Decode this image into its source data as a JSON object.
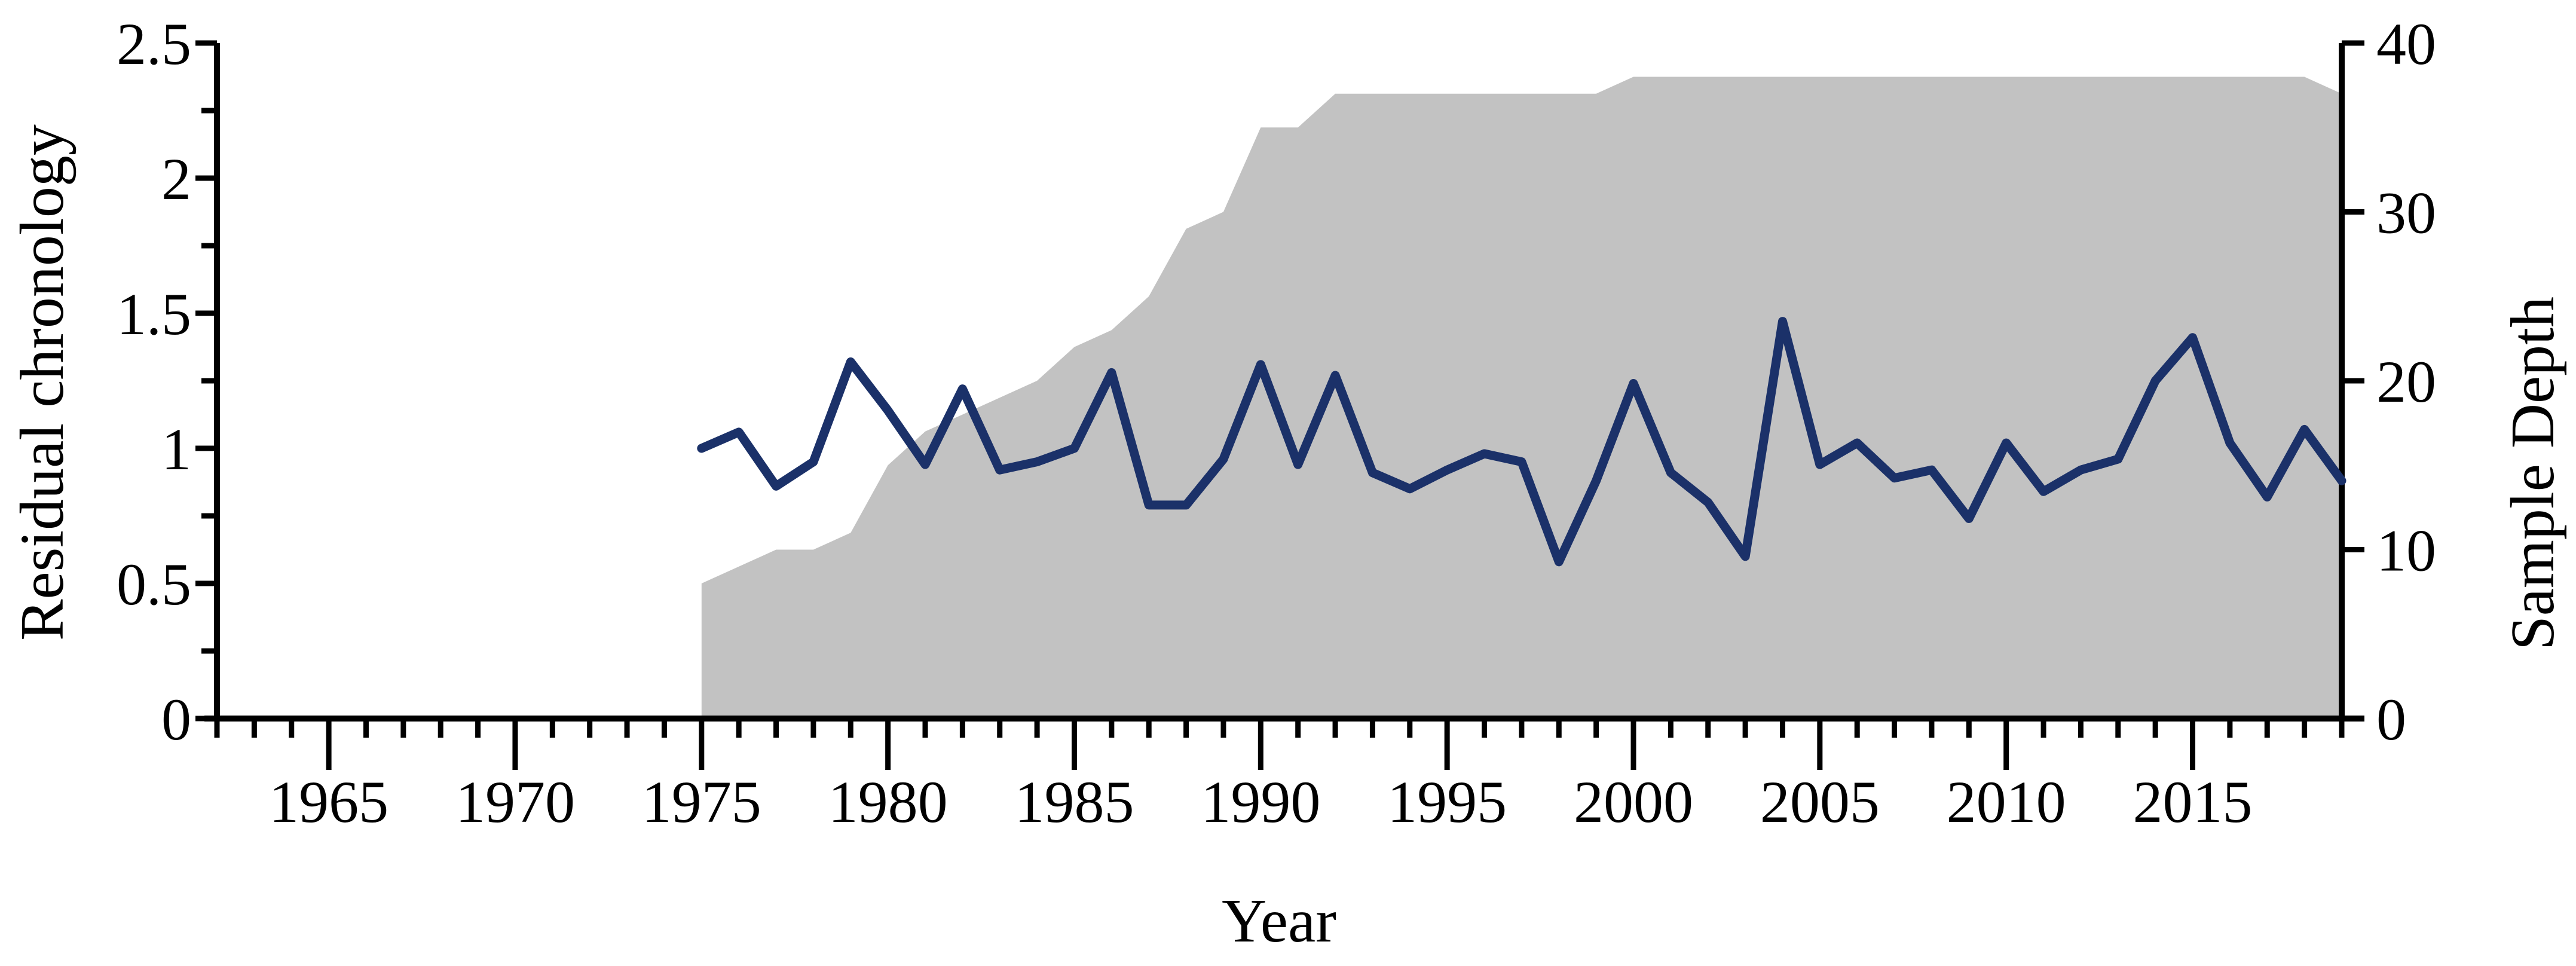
{
  "chart_data": {
    "type": "line",
    "title": "",
    "x": [
      1975,
      1976,
      1977,
      1978,
      1979,
      1980,
      1981,
      1982,
      1983,
      1984,
      1985,
      1986,
      1987,
      1988,
      1989,
      1990,
      1991,
      1992,
      1993,
      1994,
      1995,
      1996,
      1997,
      1998,
      1999,
      2000,
      2001,
      2002,
      2003,
      2004,
      2005,
      2006,
      2007,
      2008,
      2009,
      2010,
      2011,
      2012,
      2013,
      2014,
      2015,
      2016,
      2017,
      2018,
      2019
    ],
    "series": [
      {
        "name": "Residual chronology",
        "type": "line",
        "axis": "left",
        "color": "#1b3169",
        "values": [
          1.0,
          1.06,
          0.86,
          0.95,
          1.32,
          1.14,
          0.94,
          1.22,
          0.92,
          0.95,
          1.0,
          1.28,
          0.79,
          0.79,
          0.96,
          1.31,
          0.94,
          1.27,
          0.91,
          0.85,
          0.92,
          0.98,
          0.95,
          0.58,
          0.88,
          1.24,
          0.91,
          0.8,
          0.6,
          1.47,
          0.94,
          1.02,
          0.89,
          0.92,
          0.74,
          1.02,
          0.84,
          0.92,
          0.96,
          1.25,
          1.41,
          1.02,
          0.82,
          1.07,
          0.88
        ]
      },
      {
        "name": "Sample Depth",
        "type": "area",
        "axis": "right",
        "color": "#c2c2c2",
        "values": [
          8,
          9,
          10,
          10,
          11,
          15,
          17,
          18,
          19,
          20,
          22,
          23,
          25,
          29,
          30,
          35,
          35,
          37,
          37,
          37,
          37,
          37,
          37,
          37,
          37,
          38,
          38,
          38,
          38,
          38,
          38,
          38,
          38,
          38,
          38,
          38,
          38,
          38,
          38,
          38,
          38,
          38,
          38,
          38,
          37
        ]
      }
    ],
    "left_axis": {
      "label": "Residual chronology",
      "min": 0,
      "max": 2.5,
      "major_ticks": [
        0,
        0.5,
        1,
        1.5,
        2,
        2.5
      ],
      "tick_labels": [
        "0",
        "0.5",
        "1",
        "1.5",
        "2",
        "2.5"
      ],
      "minor_step": 0.25
    },
    "right_axis": {
      "label": "Sample Depth",
      "min": 0,
      "max": 40,
      "major_ticks": [
        0,
        10,
        20,
        30,
        40
      ],
      "tick_labels": [
        "0",
        "10",
        "20",
        "30",
        "40"
      ]
    },
    "x_axis": {
      "label": "Year",
      "min": 1962,
      "max": 2019,
      "major_ticks": [
        1965,
        1970,
        1975,
        1980,
        1985,
        1990,
        1995,
        2000,
        2005,
        2010,
        2015
      ],
      "minor_step": 1
    },
    "grid": "off",
    "legend": "none",
    "colors": {
      "line": "#1b3169",
      "area": "#c2c2c2",
      "axis": "#000000",
      "background": "#ffffff"
    }
  }
}
